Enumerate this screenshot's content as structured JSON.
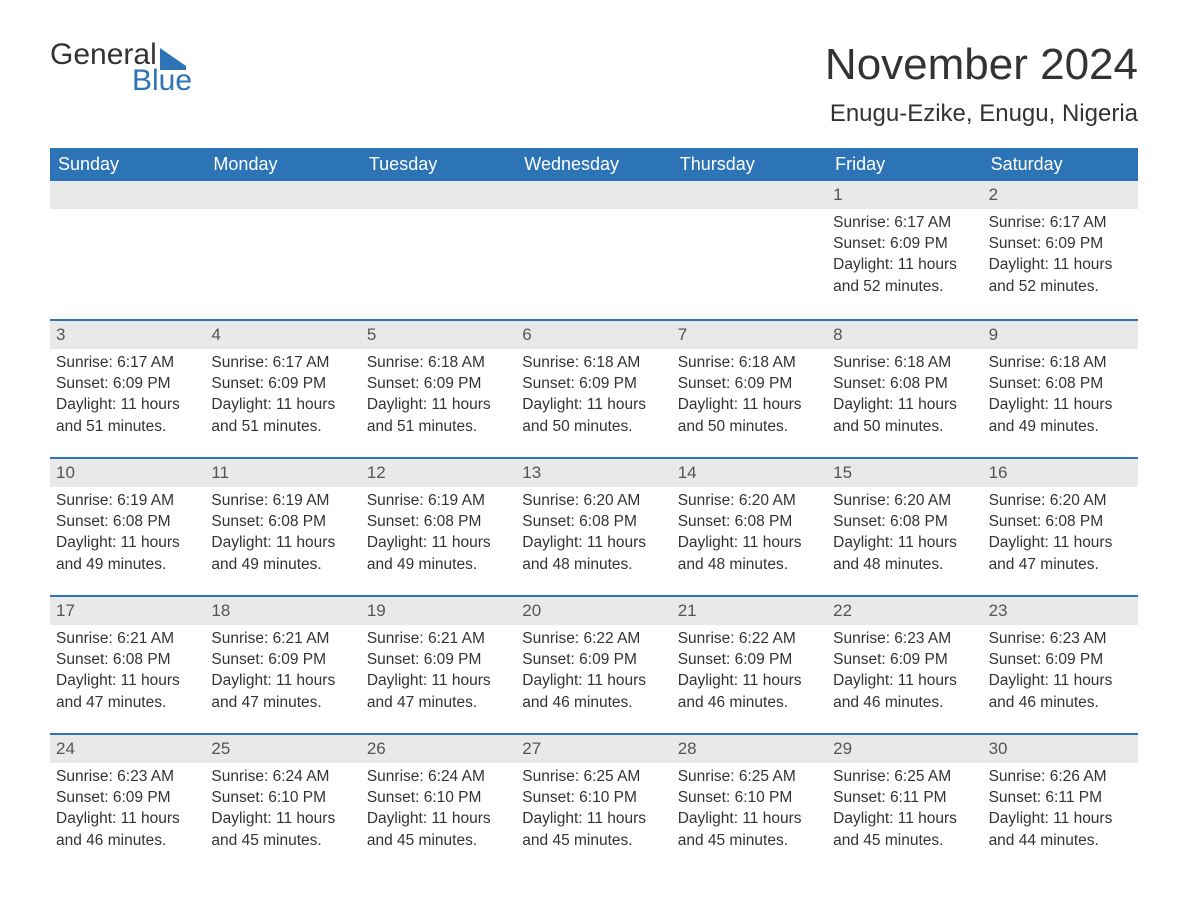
{
  "logo": {
    "word1": "General",
    "word2": "Blue"
  },
  "title": "November 2024",
  "location": "Enugu-Ezike, Enugu, Nigeria",
  "daynames": [
    "Sunday",
    "Monday",
    "Tuesday",
    "Wednesday",
    "Thursday",
    "Friday",
    "Saturday"
  ],
  "colors": {
    "header_bg": "#2d74b7",
    "header_text": "#ffffff",
    "daynum_bg": "#e9e9e9",
    "week_border": "#2d74b7",
    "text": "#333333",
    "logo_blue": "#2d74b7"
  },
  "weeks": [
    [
      {
        "empty": true
      },
      {
        "empty": true
      },
      {
        "empty": true
      },
      {
        "empty": true
      },
      {
        "empty": true
      },
      {
        "n": "1",
        "sunrise": "Sunrise: 6:17 AM",
        "sunset": "Sunset: 6:09 PM",
        "day1": "Daylight: 11 hours",
        "day2": "and 52 minutes."
      },
      {
        "n": "2",
        "sunrise": "Sunrise: 6:17 AM",
        "sunset": "Sunset: 6:09 PM",
        "day1": "Daylight: 11 hours",
        "day2": "and 52 minutes."
      }
    ],
    [
      {
        "n": "3",
        "sunrise": "Sunrise: 6:17 AM",
        "sunset": "Sunset: 6:09 PM",
        "day1": "Daylight: 11 hours",
        "day2": "and 51 minutes."
      },
      {
        "n": "4",
        "sunrise": "Sunrise: 6:17 AM",
        "sunset": "Sunset: 6:09 PM",
        "day1": "Daylight: 11 hours",
        "day2": "and 51 minutes."
      },
      {
        "n": "5",
        "sunrise": "Sunrise: 6:18 AM",
        "sunset": "Sunset: 6:09 PM",
        "day1": "Daylight: 11 hours",
        "day2": "and 51 minutes."
      },
      {
        "n": "6",
        "sunrise": "Sunrise: 6:18 AM",
        "sunset": "Sunset: 6:09 PM",
        "day1": "Daylight: 11 hours",
        "day2": "and 50 minutes."
      },
      {
        "n": "7",
        "sunrise": "Sunrise: 6:18 AM",
        "sunset": "Sunset: 6:09 PM",
        "day1": "Daylight: 11 hours",
        "day2": "and 50 minutes."
      },
      {
        "n": "8",
        "sunrise": "Sunrise: 6:18 AM",
        "sunset": "Sunset: 6:08 PM",
        "day1": "Daylight: 11 hours",
        "day2": "and 50 minutes."
      },
      {
        "n": "9",
        "sunrise": "Sunrise: 6:18 AM",
        "sunset": "Sunset: 6:08 PM",
        "day1": "Daylight: 11 hours",
        "day2": "and 49 minutes."
      }
    ],
    [
      {
        "n": "10",
        "sunrise": "Sunrise: 6:19 AM",
        "sunset": "Sunset: 6:08 PM",
        "day1": "Daylight: 11 hours",
        "day2": "and 49 minutes."
      },
      {
        "n": "11",
        "sunrise": "Sunrise: 6:19 AM",
        "sunset": "Sunset: 6:08 PM",
        "day1": "Daylight: 11 hours",
        "day2": "and 49 minutes."
      },
      {
        "n": "12",
        "sunrise": "Sunrise: 6:19 AM",
        "sunset": "Sunset: 6:08 PM",
        "day1": "Daylight: 11 hours",
        "day2": "and 49 minutes."
      },
      {
        "n": "13",
        "sunrise": "Sunrise: 6:20 AM",
        "sunset": "Sunset: 6:08 PM",
        "day1": "Daylight: 11 hours",
        "day2": "and 48 minutes."
      },
      {
        "n": "14",
        "sunrise": "Sunrise: 6:20 AM",
        "sunset": "Sunset: 6:08 PM",
        "day1": "Daylight: 11 hours",
        "day2": "and 48 minutes."
      },
      {
        "n": "15",
        "sunrise": "Sunrise: 6:20 AM",
        "sunset": "Sunset: 6:08 PM",
        "day1": "Daylight: 11 hours",
        "day2": "and 48 minutes."
      },
      {
        "n": "16",
        "sunrise": "Sunrise: 6:20 AM",
        "sunset": "Sunset: 6:08 PM",
        "day1": "Daylight: 11 hours",
        "day2": "and 47 minutes."
      }
    ],
    [
      {
        "n": "17",
        "sunrise": "Sunrise: 6:21 AM",
        "sunset": "Sunset: 6:08 PM",
        "day1": "Daylight: 11 hours",
        "day2": "and 47 minutes."
      },
      {
        "n": "18",
        "sunrise": "Sunrise: 6:21 AM",
        "sunset": "Sunset: 6:09 PM",
        "day1": "Daylight: 11 hours",
        "day2": "and 47 minutes."
      },
      {
        "n": "19",
        "sunrise": "Sunrise: 6:21 AM",
        "sunset": "Sunset: 6:09 PM",
        "day1": "Daylight: 11 hours",
        "day2": "and 47 minutes."
      },
      {
        "n": "20",
        "sunrise": "Sunrise: 6:22 AM",
        "sunset": "Sunset: 6:09 PM",
        "day1": "Daylight: 11 hours",
        "day2": "and 46 minutes."
      },
      {
        "n": "21",
        "sunrise": "Sunrise: 6:22 AM",
        "sunset": "Sunset: 6:09 PM",
        "day1": "Daylight: 11 hours",
        "day2": "and 46 minutes."
      },
      {
        "n": "22",
        "sunrise": "Sunrise: 6:23 AM",
        "sunset": "Sunset: 6:09 PM",
        "day1": "Daylight: 11 hours",
        "day2": "and 46 minutes."
      },
      {
        "n": "23",
        "sunrise": "Sunrise: 6:23 AM",
        "sunset": "Sunset: 6:09 PM",
        "day1": "Daylight: 11 hours",
        "day2": "and 46 minutes."
      }
    ],
    [
      {
        "n": "24",
        "sunrise": "Sunrise: 6:23 AM",
        "sunset": "Sunset: 6:09 PM",
        "day1": "Daylight: 11 hours",
        "day2": "and 46 minutes."
      },
      {
        "n": "25",
        "sunrise": "Sunrise: 6:24 AM",
        "sunset": "Sunset: 6:10 PM",
        "day1": "Daylight: 11 hours",
        "day2": "and 45 minutes."
      },
      {
        "n": "26",
        "sunrise": "Sunrise: 6:24 AM",
        "sunset": "Sunset: 6:10 PM",
        "day1": "Daylight: 11 hours",
        "day2": "and 45 minutes."
      },
      {
        "n": "27",
        "sunrise": "Sunrise: 6:25 AM",
        "sunset": "Sunset: 6:10 PM",
        "day1": "Daylight: 11 hours",
        "day2": "and 45 minutes."
      },
      {
        "n": "28",
        "sunrise": "Sunrise: 6:25 AM",
        "sunset": "Sunset: 6:10 PM",
        "day1": "Daylight: 11 hours",
        "day2": "and 45 minutes."
      },
      {
        "n": "29",
        "sunrise": "Sunrise: 6:25 AM",
        "sunset": "Sunset: 6:11 PM",
        "day1": "Daylight: 11 hours",
        "day2": "and 45 minutes."
      },
      {
        "n": "30",
        "sunrise": "Sunrise: 6:26 AM",
        "sunset": "Sunset: 6:11 PM",
        "day1": "Daylight: 11 hours",
        "day2": "and 44 minutes."
      }
    ]
  ]
}
